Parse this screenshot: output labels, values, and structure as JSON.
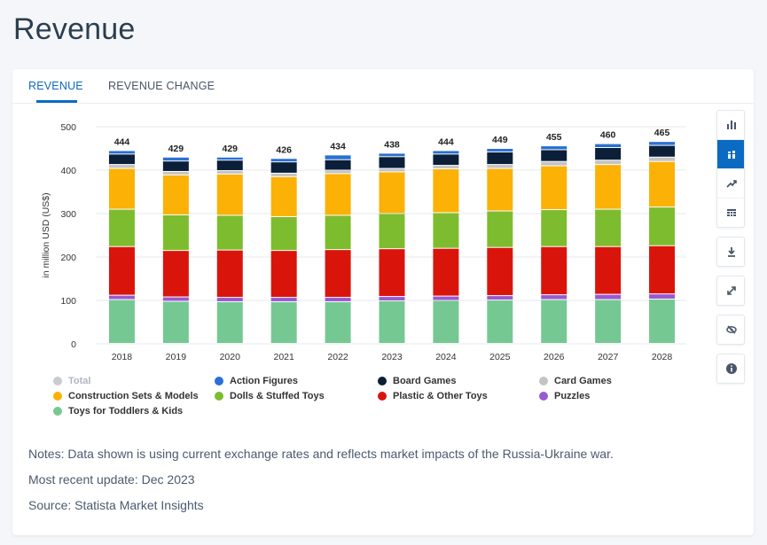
{
  "page": {
    "title": "Revenue"
  },
  "tabs": [
    {
      "label": "REVENUE",
      "active": true
    },
    {
      "label": "REVENUE CHANGE",
      "active": false
    }
  ],
  "toolbar": {
    "buttons": [
      {
        "icon": "bar-chart-icon",
        "active": false
      },
      {
        "icon": "stacked-bar-icon",
        "active": true
      },
      {
        "icon": "trend-line-icon",
        "active": false
      },
      {
        "icon": "table-grid-icon",
        "active": false
      },
      {
        "icon": "download-icon",
        "active": false
      },
      {
        "icon": "expand-icon",
        "active": false
      },
      {
        "icon": "hide-icon",
        "active": false
      },
      {
        "icon": "info-icon",
        "active": false
      }
    ]
  },
  "notes": {
    "note": "Notes: Data shown is using current exchange rates and reflects market impacts of the Russia-Ukraine war.",
    "update": "Most recent update: Dec 2023",
    "source": "Source: Statista Market Insights"
  },
  "chart_data": {
    "type": "bar",
    "stacked": true,
    "ylabel": "in million USD (US$)",
    "xlabel": "",
    "ylim": [
      0,
      500
    ],
    "yticks": [
      0,
      100,
      200,
      300,
      400,
      500
    ],
    "grid": true,
    "legend_position": "bottom",
    "categories": [
      "2018",
      "2019",
      "2020",
      "2021",
      "2022",
      "2023",
      "2024",
      "2025",
      "2026",
      "2027",
      "2028"
    ],
    "totals": [
      444,
      429,
      429,
      426,
      434,
      438,
      444,
      449,
      455,
      460,
      465
    ],
    "total_series": {
      "name": "Total",
      "color": "#c8ccd1",
      "disabled": true
    },
    "series": [
      {
        "name": "Toys for Toddlers & Kids",
        "color": "#76c893",
        "values": [
          101,
          97,
          96,
          96,
          96,
          98,
          99,
          100,
          101,
          101,
          102
        ]
      },
      {
        "name": "Puzzles",
        "color": "#9b59d0",
        "values": [
          10,
          10,
          10,
          10,
          10,
          10,
          10,
          10,
          11,
          12,
          12
        ]
      },
      {
        "name": "Plastic & Other Toys",
        "color": "#d9150b",
        "values": [
          112,
          107,
          109,
          108,
          110,
          110,
          110,
          111,
          111,
          110,
          111
        ]
      },
      {
        "name": "Dolls & Stuffed Toys",
        "color": "#7ebc2f",
        "values": [
          86,
          82,
          80,
          78,
          79,
          81,
          82,
          84,
          85,
          86,
          89
        ]
      },
      {
        "name": "Construction Sets & Models",
        "color": "#fbb106",
        "values": [
          94,
          92,
          95,
          92,
          96,
          96,
          101,
          98,
          101,
          103,
          105
        ]
      },
      {
        "name": "Card Games",
        "color": "#c4c4c4",
        "values": [
          9,
          8,
          8,
          8,
          8,
          8,
          8,
          9,
          10,
          10,
          10
        ]
      },
      {
        "name": "Board Games",
        "color": "#0b1f38",
        "values": [
          24,
          24,
          24,
          26,
          24,
          27,
          26,
          29,
          27,
          29,
          27
        ]
      },
      {
        "name": "Action Figures",
        "color": "#2a70d4",
        "values": [
          8,
          9,
          7,
          8,
          11,
          8,
          8,
          8,
          9,
          9,
          9
        ]
      }
    ],
    "legend_order": [
      "Total",
      "Action Figures",
      "Board Games",
      "Card Games",
      "Construction Sets & Models",
      "Dolls & Stuffed Toys",
      "Plastic & Other Toys",
      "Puzzles",
      "Toys for Toddlers & Kids"
    ]
  }
}
